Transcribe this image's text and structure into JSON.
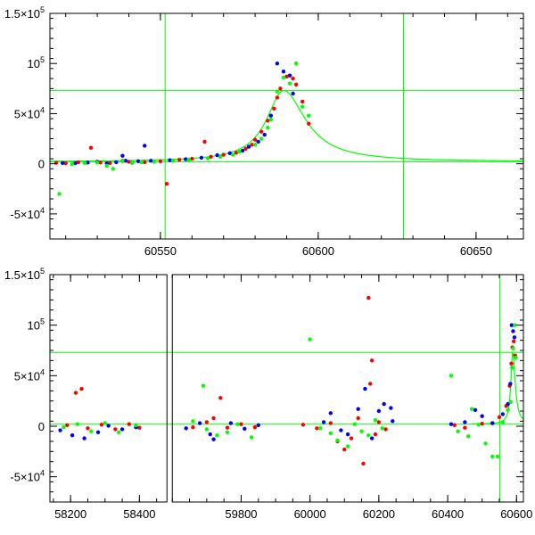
{
  "colors": {
    "frame": "#000000",
    "model": "#00ff00",
    "series_red": "#ff0000",
    "series_blue": "#0000ff",
    "series_green": "#00ff00"
  },
  "chart_data": [
    {
      "type": "scatter",
      "title": "",
      "xlabel": "",
      "ylabel": "",
      "xlim": [
        60515,
        60665
      ],
      "ylim": [
        -75000,
        150000
      ],
      "x_ticks": [
        {
          "value": 60550,
          "label": "60550"
        },
        {
          "value": 60600,
          "label": "60600"
        },
        {
          "value": 60650,
          "label": "60650"
        }
      ],
      "y_ticks": [
        {
          "value": 150000,
          "mantissa": "1.5",
          "exp": "5"
        },
        {
          "value": 100000,
          "mantissa": "",
          "exp": "5"
        },
        {
          "value": 50000,
          "mantissa": "5",
          "exp": "4"
        },
        {
          "value": 0,
          "plain": "0"
        },
        {
          "value": -50000,
          "mantissa": "-5",
          "exp": "4"
        }
      ],
      "reference_lines": {
        "vertical": [
          60551.5,
          60627
        ],
        "horizontal": [
          73000,
          2000
        ]
      },
      "model_curve": {
        "peak_x": 60589,
        "peak_y": 73000,
        "baseline": 2000,
        "width_before": 6.5,
        "width_after": 8.5
      },
      "series": [
        {
          "color": "red",
          "points": [
            [
              60517,
              1000
            ],
            [
              60520,
              500
            ],
            [
              60524,
              1500
            ],
            [
              60528,
              16000
            ],
            [
              60531,
              1200
            ],
            [
              60534,
              800
            ],
            [
              60538,
              3000
            ],
            [
              60540,
              2000
            ],
            [
              60545,
              1500
            ],
            [
              60550,
              2500
            ],
            [
              60552,
              -20000
            ],
            [
              60556,
              4000
            ],
            [
              60560,
              5000
            ],
            [
              60564,
              22000
            ],
            [
              60566,
              7000
            ],
            [
              60570,
              9000
            ],
            [
              60574,
              11000
            ],
            [
              60577,
              15000
            ],
            [
              60579,
              19000
            ],
            [
              60580,
              24000
            ],
            [
              60582,
              32000
            ],
            [
              60584,
              43000
            ],
            [
              60586,
              55000
            ],
            [
              60587,
              66000
            ],
            [
              60588,
              75000
            ],
            [
              60590,
              87000
            ],
            [
              60592,
              85000
            ],
            [
              60593,
              79000
            ],
            [
              60595,
              62000
            ],
            [
              60597,
              40000
            ]
          ]
        },
        {
          "color": "blue",
          "points": [
            [
              60519,
              800
            ],
            [
              60523,
              600
            ],
            [
              60527,
              1200
            ],
            [
              60530,
              2000
            ],
            [
              60533,
              500
            ],
            [
              60536,
              1500
            ],
            [
              60538,
              8000
            ],
            [
              60539,
              3000
            ],
            [
              60541,
              1000
            ],
            [
              60543,
              2500
            ],
            [
              60545,
              18000
            ],
            [
              60547,
              3000
            ],
            [
              60553,
              3500
            ],
            [
              60558,
              4500
            ],
            [
              60563,
              6000
            ],
            [
              60568,
              8500
            ],
            [
              60572,
              10500
            ],
            [
              60576,
              13000
            ],
            [
              60578,
              17000
            ],
            [
              60581,
              22000
            ],
            [
              60583,
              29000
            ],
            [
              60585,
              48000
            ],
            [
              60587,
              100000
            ],
            [
              60589,
              92000
            ],
            [
              60591,
              88000
            ],
            [
              60592,
              70000
            ]
          ]
        },
        {
          "color": "green",
          "points": [
            [
              60518,
              -30000
            ],
            [
              60522,
              -500
            ],
            [
              60526,
              800
            ],
            [
              60530,
              1200
            ],
            [
              60533,
              -2000
            ],
            [
              60535,
              -5000
            ],
            [
              60538,
              2500
            ],
            [
              60541,
              1000
            ],
            [
              60544,
              1500
            ],
            [
              60548,
              2000
            ],
            [
              60554,
              3000
            ],
            [
              60559,
              4000
            ],
            [
              60565,
              5500
            ],
            [
              60569,
              7000
            ],
            [
              60573,
              9000
            ],
            [
              60575,
              12000
            ],
            [
              60580,
              19000
            ],
            [
              60582,
              25000
            ],
            [
              60584,
              36000
            ],
            [
              60585,
              44000
            ],
            [
              60587,
              72000
            ],
            [
              60589,
              86000
            ],
            [
              60591,
              80000
            ],
            [
              60593,
              100000
            ],
            [
              60595,
              57000
            ],
            [
              60597,
              48000
            ]
          ]
        }
      ]
    },
    {
      "type": "scatter",
      "title": "",
      "xlabel": "",
      "ylabel": "",
      "broken_axis": true,
      "ylim": [
        -75000,
        150000
      ],
      "segments": [
        {
          "xlim": [
            58140,
            58480
          ]
        },
        {
          "xlim": [
            59600,
            60620
          ]
        }
      ],
      "x_ticks": [
        {
          "value": 58200,
          "label": "58200",
          "segment": 0
        },
        {
          "value": 58400,
          "label": "58400",
          "segment": 0
        },
        {
          "value": 59800,
          "label": "59800",
          "segment": 1
        },
        {
          "value": 60000,
          "label": "60000",
          "segment": 1
        },
        {
          "value": 60200,
          "label": "60200",
          "segment": 1
        },
        {
          "value": 60400,
          "label": "60400",
          "segment": 1
        },
        {
          "value": 60600,
          "label": "60600",
          "segment": 1
        }
      ],
      "y_ticks": [
        {
          "value": 150000,
          "mantissa": "1.5",
          "exp": "5"
        },
        {
          "value": 100000,
          "mantissa": "",
          "exp": "5"
        },
        {
          "value": 50000,
          "mantissa": "5",
          "exp": "4"
        },
        {
          "value": 0,
          "plain": "0"
        },
        {
          "value": -50000,
          "mantissa": "-5",
          "exp": "4"
        }
      ],
      "reference_lines": {
        "vertical": [
          60551.5,
          60627
        ],
        "horizontal": [
          73000,
          2000
        ]
      },
      "model_curve": {
        "peak_x": 60589,
        "peak_y": 73000,
        "baseline": 2000,
        "width_before": 6.5,
        "width_after": 8.5
      },
      "series": [
        {
          "color": "red",
          "points": [
            [
              58190,
              1000
            ],
            [
              58215,
              33000
            ],
            [
              58232,
              37000
            ],
            [
              58250,
              -2000
            ],
            [
              58290,
              1500
            ],
            [
              58330,
              -3000
            ],
            [
              58370,
              2000
            ],
            [
              58400,
              -1500
            ],
            [
              59660,
              -1000
            ],
            [
              59700,
              4000
            ],
            [
              59720,
              8000
            ],
            [
              59740,
              28000
            ],
            [
              59760,
              -1500
            ],
            [
              59800,
              2000
            ],
            [
              59840,
              -1000
            ],
            [
              59980,
              1500
            ],
            [
              60020,
              -2000
            ],
            [
              60060,
              3000
            ],
            [
              60080,
              -15000
            ],
            [
              60100,
              -23000
            ],
            [
              60120,
              -12000
            ],
            [
              60140,
              8000
            ],
            [
              60155,
              -37000
            ],
            [
              60170,
              127000
            ],
            [
              60175,
              42000
            ],
            [
              60180,
              65000
            ],
            [
              60190,
              -8000
            ],
            [
              60200,
              4000
            ],
            [
              60220,
              -3000
            ],
            [
              60420,
              1000
            ],
            [
              60450,
              -1500
            ],
            [
              60500,
              2500
            ],
            [
              60530,
              3000
            ],
            [
              60550,
              9000
            ],
            [
              60570,
              20000
            ],
            [
              60580,
              40000
            ],
            [
              60585,
              62000
            ],
            [
              60588,
              78000
            ],
            [
              60592,
              84000
            ],
            [
              60596,
              70000
            ]
          ]
        },
        {
          "color": "blue",
          "points": [
            [
              58170,
              -4000
            ],
            [
              58205,
              -9000
            ],
            [
              58240,
              -12000
            ],
            [
              58280,
              -6000
            ],
            [
              58310,
              500
            ],
            [
              58350,
              -3000
            ],
            [
              58390,
              -1000
            ],
            [
              59640,
              -2000
            ],
            [
              59680,
              3000
            ],
            [
              59710,
              -8000
            ],
            [
              59720,
              -13000
            ],
            [
              59770,
              3000
            ],
            [
              59810,
              -2500
            ],
            [
              59850,
              1000
            ],
            [
              60040,
              4000
            ],
            [
              60060,
              13000
            ],
            [
              60090,
              -4000
            ],
            [
              60110,
              -8000
            ],
            [
              60140,
              17000
            ],
            [
              60160,
              37000
            ],
            [
              60180,
              -12000
            ],
            [
              60200,
              15000
            ],
            [
              60215,
              22000
            ],
            [
              60235,
              18000
            ],
            [
              60240,
              5000
            ],
            [
              60410,
              2000
            ],
            [
              60450,
              4000
            ],
            [
              60480,
              16000
            ],
            [
              60500,
              10000
            ],
            [
              60530,
              3000
            ],
            [
              60560,
              12000
            ],
            [
              60575,
              22000
            ],
            [
              60582,
              42000
            ],
            [
              60586,
              100000
            ],
            [
              60590,
              94000
            ],
            [
              60594,
              88000
            ]
          ]
        },
        {
          "color": "green",
          "points": [
            [
              58180,
              -1000
            ],
            [
              58220,
              2000
            ],
            [
              58260,
              -5000
            ],
            [
              58300,
              3000
            ],
            [
              58340,
              -6000
            ],
            [
              58390,
              1000
            ],
            [
              59660,
              5000
            ],
            [
              59690,
              40000
            ],
            [
              59700,
              -3000
            ],
            [
              59730,
              -9000
            ],
            [
              59760,
              -6000
            ],
            [
              59790,
              2000
            ],
            [
              59830,
              -11000
            ],
            [
              60000,
              86000
            ],
            [
              60030,
              -2000
            ],
            [
              60060,
              -7000
            ],
            [
              60080,
              -14000
            ],
            [
              60110,
              -20000
            ],
            [
              60130,
              2000
            ],
            [
              60150,
              -5000
            ],
            [
              60170,
              -9000
            ],
            [
              60190,
              6000
            ],
            [
              60210,
              -2000
            ],
            [
              60410,
              50000
            ],
            [
              60430,
              -5000
            ],
            [
              60460,
              -10000
            ],
            [
              60470,
              17000
            ],
            [
              60490,
              1500
            ],
            [
              60510,
              -17000
            ],
            [
              60530,
              -30000
            ],
            [
              60545,
              -30000
            ],
            [
              60560,
              4000
            ],
            [
              60575,
              16000
            ],
            [
              60583,
              24000
            ],
            [
              60587,
              58000
            ],
            [
              60590,
              77000
            ],
            [
              60595,
              100000
            ],
            [
              60598,
              68000
            ]
          ]
        }
      ]
    }
  ]
}
